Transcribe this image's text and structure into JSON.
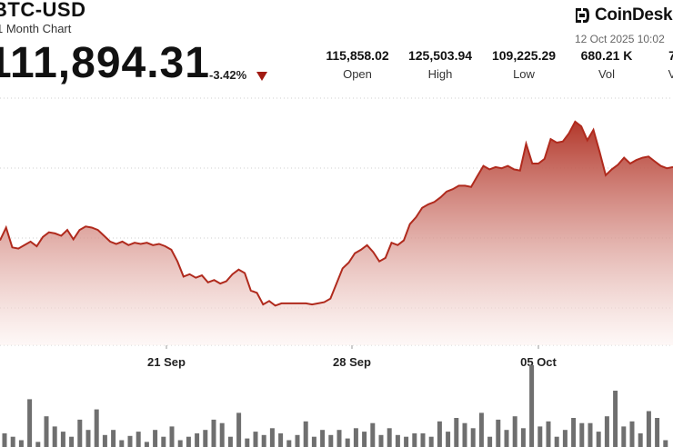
{
  "header": {
    "pair": "BTC-USD",
    "chart_label": "1 Month Chart",
    "price": "111,894.31",
    "change": "-3.42%",
    "change_direction": "down",
    "down_color": "#a11a12"
  },
  "brand": {
    "name": "CoinDesk",
    "icon": "coindesk-logo-icon",
    "timestamp": "12 Oct 2025 10:02"
  },
  "stats": [
    {
      "value": "115,858.02",
      "label": "Open"
    },
    {
      "value": "125,503.94",
      "label": "High"
    },
    {
      "value": "109,225.29",
      "label": "Low"
    },
    {
      "value": "680.21 K",
      "label": "Vol"
    },
    {
      "value": "7",
      "label": "V"
    }
  ],
  "colors": {
    "line": "#b02a1d",
    "fill_top": "#b3382b",
    "fill_bottom": "#fdf3f1",
    "volume_bar": "#6f6f6f",
    "grid": "#cfcfcf"
  },
  "chart_data": {
    "type": "area",
    "title": "",
    "xlabel": "",
    "ylabel": "",
    "x_ticks": [
      "21 Sep",
      "28 Sep",
      "05 Oct"
    ],
    "ylim": [
      106000,
      128000
    ],
    "grid": "horizontal dotted",
    "series": [
      {
        "values": [
          115000,
          116100,
          114400,
          114300,
          114600,
          114900,
          114500,
          115300,
          115700,
          115600,
          115400,
          115900,
          115100,
          115900,
          116200,
          116100,
          115900,
          115400,
          114900,
          114700,
          114900,
          114600,
          114800,
          114700,
          114800,
          114600,
          114700,
          114500,
          114200,
          113200,
          111900,
          112100,
          111800,
          112000,
          111400,
          111600,
          111300,
          111500,
          112100,
          112500,
          112200,
          110700,
          110500,
          109500,
          109800,
          109400,
          109600,
          109600,
          109600,
          109600,
          109600,
          109500,
          109600,
          109700,
          110000,
          111300,
          112600,
          113100,
          113900,
          114200,
          114600,
          114000,
          113200,
          113500,
          114800,
          114600,
          115000,
          116400,
          117000,
          117800,
          118100,
          118300,
          118700,
          119200,
          119400,
          119700,
          119700,
          119600,
          120500,
          121400,
          121100,
          121300,
          121200,
          121400,
          121100,
          121000,
          123300,
          121600,
          121600,
          122000,
          123700,
          123400,
          123500,
          124200,
          125200,
          124800,
          123600,
          124500,
          122600,
          120600,
          121100,
          121500,
          122100,
          121600,
          121900,
          122100,
          122200,
          121800,
          121400,
          121200,
          121300
        ]
      }
    ],
    "volume": [
      0.16,
      0.12,
      0.08,
      0.56,
      0.06,
      0.36,
      0.24,
      0.18,
      0.12,
      0.32,
      0.2,
      0.44,
      0.14,
      0.2,
      0.08,
      0.13,
      0.18,
      0.06,
      0.2,
      0.12,
      0.24,
      0.08,
      0.12,
      0.16,
      0.2,
      0.32,
      0.28,
      0.12,
      0.4,
      0.1,
      0.18,
      0.14,
      0.22,
      0.16,
      0.08,
      0.14,
      0.3,
      0.12,
      0.2,
      0.14,
      0.2,
      0.1,
      0.22,
      0.18,
      0.28,
      0.14,
      0.22,
      0.14,
      0.12,
      0.16,
      0.16,
      0.12,
      0.3,
      0.18,
      0.34,
      0.28,
      0.22,
      0.4,
      0.12,
      0.32,
      0.2,
      0.36,
      0.22,
      0.96,
      0.24,
      0.3,
      0.12,
      0.2,
      0.34,
      0.28,
      0.28,
      0.18,
      0.36,
      0.66,
      0.24,
      0.3,
      0.16,
      0.42,
      0.34,
      0.08
    ]
  }
}
